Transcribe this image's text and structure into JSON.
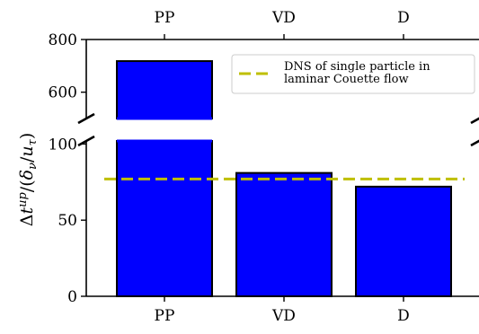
{
  "chart_data": {
    "type": "bar",
    "categories": [
      "PP",
      "VD",
      "D"
    ],
    "values": [
      718,
      81,
      72
    ],
    "bar_color": "#0000ff",
    "bar_edge_color": "#000000",
    "reference_line": {
      "label_lines": [
        "DNS of single particle in",
        "laminar Couette flow"
      ],
      "value": 77,
      "color": "#bfbf00",
      "style": "dashed"
    },
    "ylabel": "Δt^{up}/(δ_ν/u_τ)",
    "ylabel_parts": {
      "prefix": "Δ",
      "var": "t",
      "sup": "up",
      "mid": "/(",
      "var2": "δ",
      "sub2": "ν",
      "mid2": "/",
      "var3": "u",
      "sub3": "τ",
      "end": ")"
    },
    "broken_axis": true,
    "lower_panel": {
      "ylim": [
        0,
        102
      ],
      "yticks": [
        0,
        50,
        100
      ]
    },
    "upper_panel": {
      "ylim": [
        500,
        800
      ],
      "yticks": [
        600,
        800
      ]
    },
    "top_axis_tick_labels": [
      "PP",
      "VD",
      "D"
    ],
    "legend_position": "upper-right",
    "grid": false
  }
}
